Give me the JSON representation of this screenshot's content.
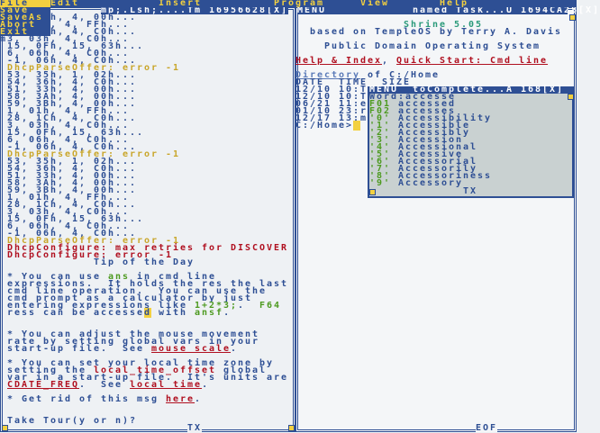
{
  "menubar": {
    "items": [
      "File",
      "Edit",
      "Insert",
      "Program",
      "View",
      "Help"
    ]
  },
  "file_menu": {
    "items": [
      "Save",
      "SaveAs",
      "Abort",
      "Exit"
    ]
  },
  "left_window": {
    "title": "mp;.Lsh;....Tm 16956628[X]",
    "footer": "TX",
    "lines": [
      [
        [
          "      h, 4, 00h...",
          "n"
        ]
      ],
      [
        [
          "       , 4, FFh...",
          "n"
        ]
      ],
      [
        [
          "      h, 4, C0h...",
          "n"
        ]
      ],
      [
        [
          "m3, 03h, 4, C0h...",
          "n"
        ]
      ],
      [
        [
          " 15, 0Fh, 15, 63h...",
          "n"
        ]
      ],
      [
        [
          " 6, 06h, 4, C0h...",
          "n"
        ]
      ],
      [
        [
          " -1, 06h, 4, C0h...",
          "n"
        ]
      ],
      [
        [
          " DhcpParseOffer: error -1",
          "y"
        ]
      ],
      [
        [
          " 53, 35h, 1, 02h...",
          "n"
        ]
      ],
      [
        [
          " 54, 36h, 4, C0h...",
          "n"
        ]
      ],
      [
        [
          " 51, 33h, 4, 00h...",
          "n"
        ]
      ],
      [
        [
          " 58, 3Ah, 4, 00h...",
          "n"
        ]
      ],
      [
        [
          " 59, 3Bh, 4, 00h...",
          "n"
        ]
      ],
      [
        [
          " 1, 01h, 4, FFh...",
          "n"
        ]
      ],
      [
        [
          " 28, 1Ch, 4, C0h...",
          "n"
        ]
      ],
      [
        [
          " 3, 03h, 4, C0h...",
          "n"
        ]
      ],
      [
        [
          " 15, 0Fh, 15, 63h...",
          "n"
        ]
      ],
      [
        [
          " 6, 06h, 4, C0h...",
          "n"
        ]
      ],
      [
        [
          " -1, 06h, 4, C0h...",
          "n"
        ]
      ],
      [
        [
          " DhcpParseOffer: error -1",
          "y"
        ]
      ],
      [
        [
          " 53, 35h, 1, 02h...",
          "n"
        ]
      ],
      [
        [
          " 54, 36h, 4, C0h...",
          "n"
        ]
      ],
      [
        [
          " 51, 33h, 4, 00h...",
          "n"
        ]
      ],
      [
        [
          " 58, 3Ah, 4, 00h...",
          "n"
        ]
      ],
      [
        [
          " 59, 3Bh, 4, 00h...",
          "n"
        ]
      ],
      [
        [
          " 1, 01h, 4, FFh...",
          "n"
        ]
      ],
      [
        [
          " 28, 1Ch, 4, C0h...",
          "n"
        ]
      ],
      [
        [
          " 3, 03h, 4, C0h...",
          "n"
        ]
      ],
      [
        [
          " 15, 0Fh, 15, 63h...",
          "n"
        ]
      ],
      [
        [
          " 6, 06h, 4, C0h...",
          "n"
        ]
      ],
      [
        [
          " -1, 06h, 4, C0h...",
          "n"
        ]
      ],
      [
        [
          " DhcpParseOffer: error -1",
          "y"
        ]
      ],
      [
        [
          " DhcpConfigure: max retries for DISCOVER",
          "r"
        ]
      ],
      [
        [
          " DhcpConfigure: error -1",
          "r"
        ]
      ],
      [
        [
          "             Tip of the Day",
          "n"
        ]
      ],
      [],
      [
        [
          " * You can use ",
          "n"
        ],
        [
          "ans",
          "g"
        ],
        [
          " in cmd line",
          "n"
        ]
      ],
      [
        [
          " expressions.  It holds the res the last",
          "n"
        ]
      ],
      [
        [
          " cmd line operation.  You can use the",
          "n"
        ]
      ],
      [
        [
          " cmd prompt as a calculator by just",
          "n"
        ]
      ],
      [
        [
          " entering expressions like ",
          "n"
        ],
        [
          "1+2*3;",
          "g"
        ],
        [
          ".  ",
          "n"
        ],
        [
          "F64",
          "g"
        ]
      ],
      [
        [
          " ress can be accesse",
          "n"
        ],
        [
          "d",
          "c"
        ],
        [
          " with ",
          "n"
        ],
        [
          "ansf",
          "g"
        ],
        [
          ".",
          "n"
        ]
      ],
      [],
      [],
      [
        [
          " * You can adjust the mouse movement",
          "n"
        ]
      ],
      [
        [
          " rate by setting global vars in your",
          "n"
        ]
      ],
      [
        [
          " start-up file.  See ",
          "n"
        ],
        [
          "mouse scale",
          "l"
        ],
        [
          ".",
          "n"
        ]
      ],
      [],
      [
        [
          " * You can set your local time zone by",
          "n"
        ]
      ],
      [
        [
          " setting the ",
          "n"
        ],
        [
          "local_time_offset",
          "r"
        ],
        [
          " global",
          "n"
        ]
      ],
      [
        [
          " var in a start-up file.  It's units are",
          "n"
        ]
      ],
      [
        [
          " ",
          "n"
        ],
        [
          "CDATE_FREQ",
          "l"
        ],
        [
          ".  See ",
          "n"
        ],
        [
          "local time",
          "l"
        ],
        [
          ".",
          "n"
        ]
      ],
      [],
      [
        [
          " * Get rid of this msg ",
          "n"
        ],
        [
          "here",
          "l"
        ],
        [
          ".",
          "n"
        ]
      ],
      [],
      [],
      [
        [
          " Take Tour(y or n)?",
          "n"
        ]
      ]
    ]
  },
  "right_window": {
    "title": "MENU            named Task...U 1694CA28[X]",
    "footer": "EOF",
    "lines": [
      [],
      [
        [
          "               Shrine 5.05",
          "t"
        ]
      ],
      [
        [
          "  based on TempleOS by Terry A. Davis",
          "n"
        ]
      ],
      [],
      [
        [
          "    Public Domain Operating System",
          "n"
        ]
      ],
      [],
      [
        [
          "Help & Index",
          "l"
        ],
        [
          ", ",
          "n"
        ],
        [
          "Quick Start: Cmd line",
          "l"
        ]
      ],
      [],
      [
        [
          "Directory",
          "lb"
        ],
        [
          " of C:/Home",
          "n"
        ]
      ],
      [
        [
          "DATE  TIME  SIZE",
          "n"
        ]
      ],
      [
        [
          "12/10 10:T",
          "n"
        ]
      ],
      [
        [
          "12/10 10:T",
          "n"
        ]
      ],
      [
        [
          "06/21 11:e",
          "n"
        ]
      ],
      [
        [
          "01/10 23:r",
          "n"
        ]
      ],
      [
        [
          "12/17 13:m",
          "n"
        ]
      ],
      [
        [
          "C:/Home>",
          "n"
        ],
        [
          " ",
          "c"
        ]
      ]
    ]
  },
  "autocomplete": {
    "title": "MENU  toComplete...A 168[X]",
    "footer": "TX",
    "word_label": "Word:",
    "word": "accesse",
    "items": [
      {
        "key": "F01",
        "word": "accessed"
      },
      {
        "key": "F02",
        "word": "accesses"
      },
      {
        "key": "'0'",
        "word": "Accessibility"
      },
      {
        "key": "'1'",
        "word": "Accessible"
      },
      {
        "key": "'2'",
        "word": "Accessibly"
      },
      {
        "key": "'3'",
        "word": "Accession"
      },
      {
        "key": "'4'",
        "word": "Accessional"
      },
      {
        "key": "'5'",
        "word": "Accessive"
      },
      {
        "key": "'6'",
        "word": "Accessorial"
      },
      {
        "key": "'7'",
        "word": "Accessorily"
      },
      {
        "key": "'8'",
        "word": "Accessoriness"
      },
      {
        "key": "'9'",
        "word": "Accessory"
      }
    ]
  }
}
